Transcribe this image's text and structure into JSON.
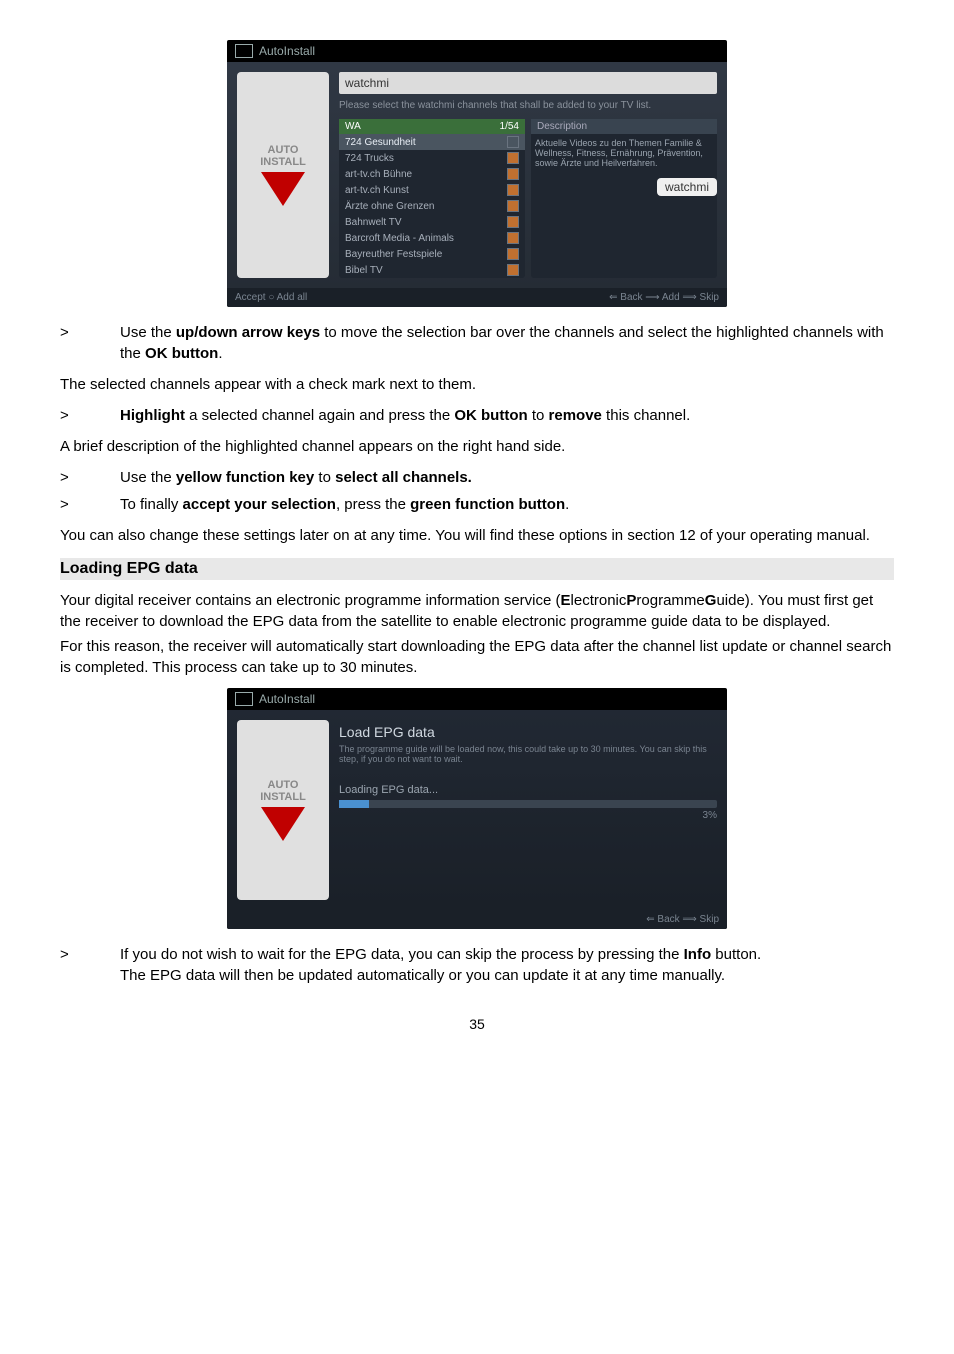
{
  "shot1": {
    "title": "AutoInstall",
    "panel_heading": "watchmi",
    "panel_sub": "Please select the watchmi channels that shall be added to your TV list.",
    "list_head_left": "WA",
    "list_head_count": "1/54",
    "desc_head": "Description",
    "rows": [
      {
        "label": "724 Gesundheit",
        "hi": true
      },
      {
        "label": "724 Trucks"
      },
      {
        "label": "art-tv.ch Bühne"
      },
      {
        "label": "art-tv.ch Kunst"
      },
      {
        "label": "Ärzte ohne Grenzen"
      },
      {
        "label": "Bahnwelt TV"
      },
      {
        "label": "Barcroft Media - Animals"
      },
      {
        "label": "Bayreuther Festspiele"
      },
      {
        "label": "Bibel TV"
      }
    ],
    "desc_text": "Aktuelle Videos zu den Themen Familie & Wellness, Fitness, Ernährung, Prävention, sowie Ärzte und Heilverfahren.",
    "badge": "watchmi",
    "footer_left": "Accept  ○ Add all",
    "footer_right": "⇐ Back  ⟶ Add  ⟹ Skip",
    "auto_label1": "AUTO",
    "auto_label2": "INSTALL"
  },
  "para1a": "Use the ",
  "para1b": "up/down arrow keys",
  "para1c": " to move the selection bar over the channels and select the highlighted channels with the ",
  "para1d": "OK button",
  "para1e": ".",
  "para2": "The selected channels appear with a check mark next to them.",
  "para3a": "Highlight",
  "para3b": " a selected channel again and press the ",
  "para3c": "OK button",
  "para3d": " to ",
  "para3e": "remove",
  "para3f": " this channel.",
  "para4": "A brief description of the highlighted channel appears on the right hand side.",
  "para5a": "Use the ",
  "para5b": "yellow function key",
  "para5c": " to ",
  "para5d": "select all channels.",
  "para6a": "To finally ",
  "para6b": "accept your selection",
  "para6c": ", press the ",
  "para6d": "green function button",
  "para6e": ".",
  "para7": "You can also change these settings later on at any time. You will find these options in section 12 of your operating manual.",
  "section_head": "Loading EPG data",
  "para8a": "Your digital receiver contains an electronic programme information service (",
  "para8b": "E",
  "para8c": "lectronic",
  "para8d": "P",
  "para8e": "rogramme",
  "para8f": "G",
  "para8g": "uide). You must first get the receiver to download the EPG data from the satellite to enable electronic programme guide data to be displayed.",
  "para9": "For this reason, the receiver will automatically start downloading the EPG data after the channel list update or channel search is completed. This process can take up to 30 minutes.",
  "shot2": {
    "title": "AutoInstall",
    "heading": "Load EPG data",
    "text": "The programme guide will be loaded now, this could take up to 30 minutes. You can skip this step, if you do not want to wait.",
    "loading": "Loading EPG data...",
    "pct": "3%",
    "footer": "⇐ Back  ⟹ Skip",
    "auto_label1": "AUTO",
    "auto_label2": "INSTALL"
  },
  "para10a": "If you do not wish to wait for the EPG data, you can skip the process by pressing the ",
  "para10b": "Info",
  "para10c": " button.",
  "para11": "The EPG data will then be updated automatically or you can update it at any time manually.",
  "pagenum": "35",
  "gt": ">"
}
